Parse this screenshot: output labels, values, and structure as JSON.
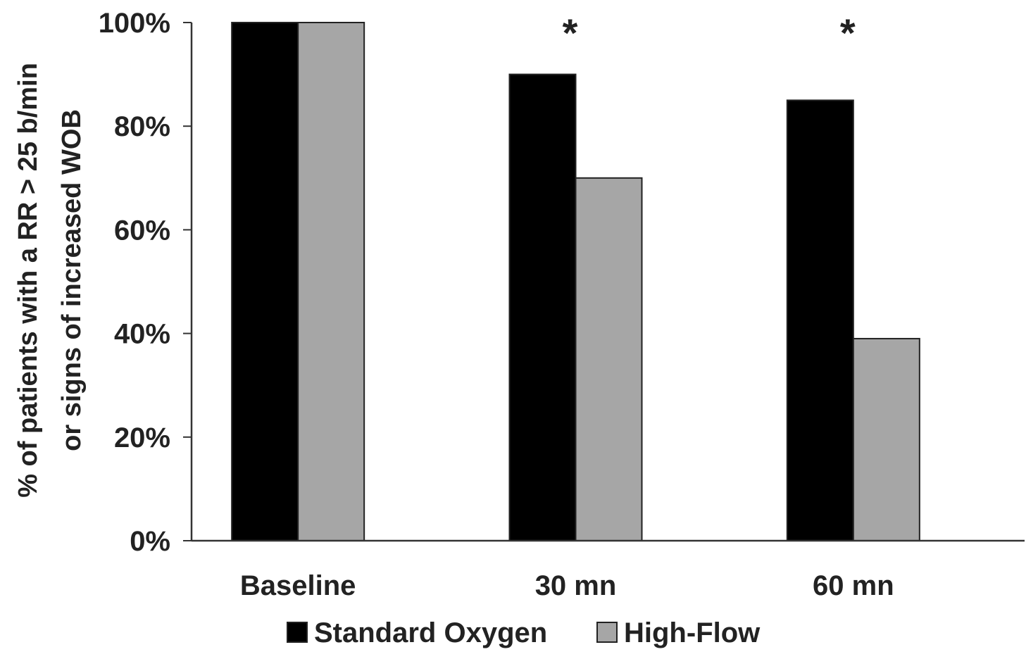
{
  "chart_data": {
    "type": "bar",
    "categories": [
      "Baseline",
      "30 mn",
      "60 mn"
    ],
    "series": [
      {
        "name": "Standard Oxygen",
        "values": [
          100,
          90,
          85
        ],
        "color": "#000000"
      },
      {
        "name": "High-Flow",
        "values": [
          100,
          70,
          39
        ],
        "color": "#a6a6a6"
      }
    ],
    "title": "",
    "xlabel": "",
    "ylabel_lines": [
      "% of patients with a RR > 25 b/min",
      "or signs of increased WOB"
    ],
    "ylim": [
      0,
      100
    ],
    "yticks": [
      0,
      20,
      40,
      60,
      80,
      100
    ],
    "ytick_labels": [
      "0%",
      "20%",
      "40%",
      "60%",
      "80%",
      "100%"
    ],
    "annotations": [
      {
        "category": "30 mn",
        "text": "*"
      },
      {
        "category": "60 mn",
        "text": "*"
      }
    ],
    "grid": false,
    "legend_position": "bottom"
  }
}
